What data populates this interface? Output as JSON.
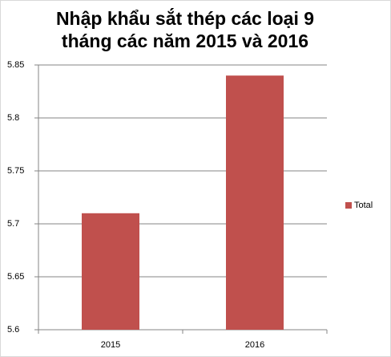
{
  "chart_data": {
    "type": "bar",
    "title": "Nhập khẩu sắt thép các loại 9 tháng các năm 2015 và 2016",
    "categories": [
      "2015",
      "2016"
    ],
    "series": [
      {
        "name": "Total",
        "color": "#c0504d",
        "values": [
          5.71,
          5.84
        ]
      }
    ],
    "ylim": [
      5.6,
      5.85
    ],
    "yticks": [
      5.6,
      5.65,
      5.7,
      5.75,
      5.8,
      5.85
    ],
    "grid": true,
    "legend": "right"
  }
}
